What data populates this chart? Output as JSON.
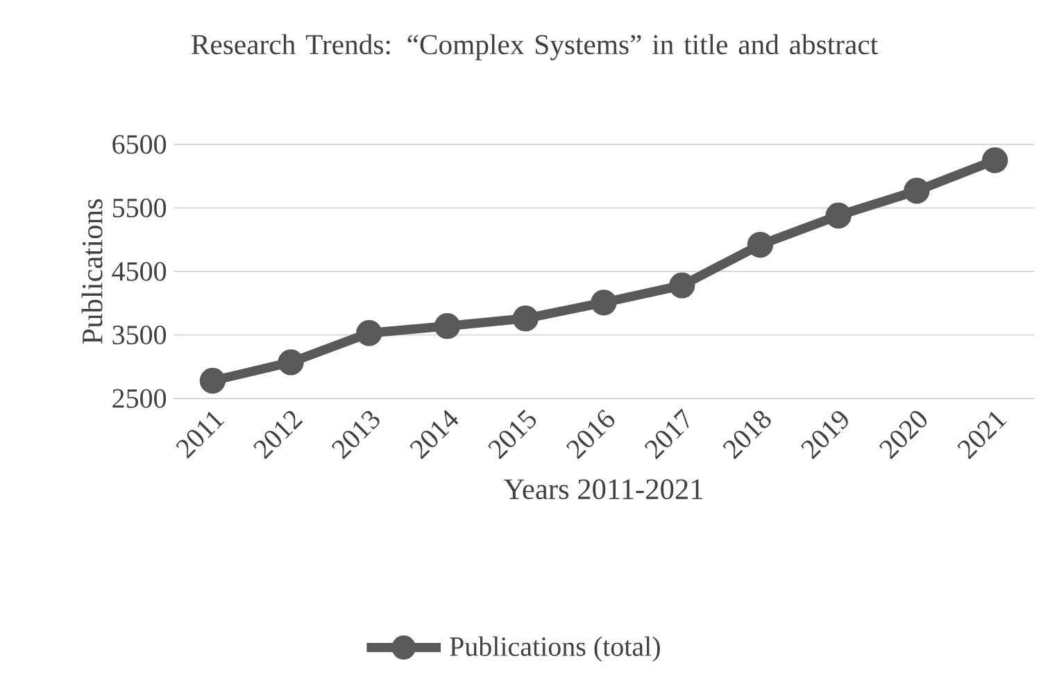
{
  "chart_data": {
    "type": "line",
    "title": "Research Trends: “Complex Systems” in title and abstract",
    "xlabel": "Years 2011-2021",
    "ylabel": "Publications",
    "categories": [
      "2011",
      "2012",
      "2013",
      "2014",
      "2015",
      "2016",
      "2017",
      "2018",
      "2019",
      "2020",
      "2021"
    ],
    "series": [
      {
        "name": "Publications (total)",
        "color": "#595959",
        "values": [
          2780,
          3070,
          3530,
          3640,
          3760,
          4010,
          4280,
          4920,
          5380,
          5770,
          6250
        ]
      }
    ],
    "ylim": [
      2500,
      6500
    ],
    "yticks": [
      2500,
      3500,
      4500,
      5500,
      6500
    ],
    "grid": "y",
    "legend": "bottom",
    "marker": "circle",
    "line_style": "solid"
  }
}
